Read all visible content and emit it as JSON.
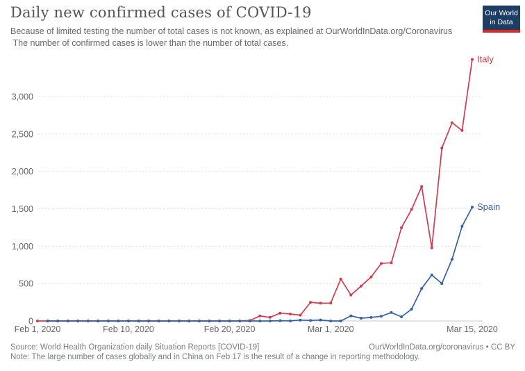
{
  "header": {
    "title": "Daily new confirmed cases of COVID-19",
    "subtitle": "Because of limited testing the number of total cases is not known, as explained at OurWorldInData.org/Coronavirus\n The number of confirmed cases is lower than the number of total cases.",
    "logo": {
      "line1": "Our World",
      "line2": "in Data"
    }
  },
  "colors": {
    "italy": "#d13b4b",
    "spain": "#3360a9",
    "logo_bg": "#1d3d63",
    "logo_stripe": "#dc2a20",
    "gridline": "#dddddd",
    "axis_baseline": "#c8c8c8",
    "tick_text": "#666666",
    "title_text": "#555555",
    "footer_text": "#7b7e81"
  },
  "chart_data": {
    "type": "line",
    "title": "Daily new confirmed cases of COVID-19",
    "xlabel": "",
    "ylabel": "",
    "ylim": [
      0,
      3500
    ],
    "grid": "horizontal-dotted",
    "legend": "end-of-line-labels",
    "x": [
      "2020-02-01",
      "2020-02-02",
      "2020-02-03",
      "2020-02-04",
      "2020-02-05",
      "2020-02-06",
      "2020-02-07",
      "2020-02-08",
      "2020-02-09",
      "2020-02-10",
      "2020-02-11",
      "2020-02-12",
      "2020-02-13",
      "2020-02-14",
      "2020-02-15",
      "2020-02-16",
      "2020-02-17",
      "2020-02-18",
      "2020-02-19",
      "2020-02-20",
      "2020-02-21",
      "2020-02-22",
      "2020-02-23",
      "2020-02-24",
      "2020-02-25",
      "2020-02-26",
      "2020-02-27",
      "2020-02-28",
      "2020-02-29",
      "2020-03-01",
      "2020-03-02",
      "2020-03-03",
      "2020-03-04",
      "2020-03-05",
      "2020-03-06",
      "2020-03-07",
      "2020-03-08",
      "2020-03-09",
      "2020-03-10",
      "2020-03-11",
      "2020-03-12",
      "2020-03-13",
      "2020-03-14",
      "2020-03-15"
    ],
    "x_ticks": [
      {
        "index": 0,
        "label": "Feb 1, 2020"
      },
      {
        "index": 9,
        "label": "Feb 10, 2020"
      },
      {
        "index": 19,
        "label": "Feb 20, 2020"
      },
      {
        "index": 29,
        "label": "Mar 1, 2020"
      },
      {
        "index": 43,
        "label": "Mar 15, 2020"
      }
    ],
    "y_ticks": [
      {
        "value": 0,
        "label": "0"
      },
      {
        "value": 500,
        "label": "500"
      },
      {
        "value": 1000,
        "label": "1,000"
      },
      {
        "value": 1500,
        "label": "1,500"
      },
      {
        "value": 2000,
        "label": "2,000"
      },
      {
        "value": 2500,
        "label": "2,500"
      },
      {
        "value": 3000,
        "label": "3,000"
      }
    ],
    "series": [
      {
        "name": "Italy",
        "color": "#d13b4b",
        "values": [
          0,
          0,
          0,
          0,
          0,
          0,
          0,
          0,
          0,
          0,
          0,
          0,
          0,
          0,
          0,
          0,
          0,
          0,
          0,
          0,
          0,
          6,
          67,
          48,
          105,
          93,
          78,
          250,
          238,
          240,
          561,
          347,
          466,
          587,
          769,
          778,
          1247,
          1492,
          1797,
          977,
          2313,
          2651,
          2547,
          3497
        ]
      },
      {
        "name": "Spain",
        "color": "#3360a9",
        "values": [
          null,
          0,
          0,
          0,
          0,
          0,
          0,
          0,
          0,
          1,
          0,
          0,
          0,
          0,
          0,
          0,
          0,
          0,
          0,
          0,
          0,
          0,
          0,
          0,
          4,
          1,
          12,
          7,
          13,
          0,
          0,
          69,
          37,
          47,
          63,
          113,
          56,
          159,
          435,
          615,
          501,
          825,
          1266,
          1522
        ]
      }
    ]
  },
  "footer": {
    "source": "Source: World Health Organization daily Situation Reports [COVID-19]",
    "credit": "OurWorldInData.org/coronavirus • CC BY",
    "note": "Note: The large number of cases globally and in China on Feb 17 is the result of a change in reporting methodology."
  }
}
